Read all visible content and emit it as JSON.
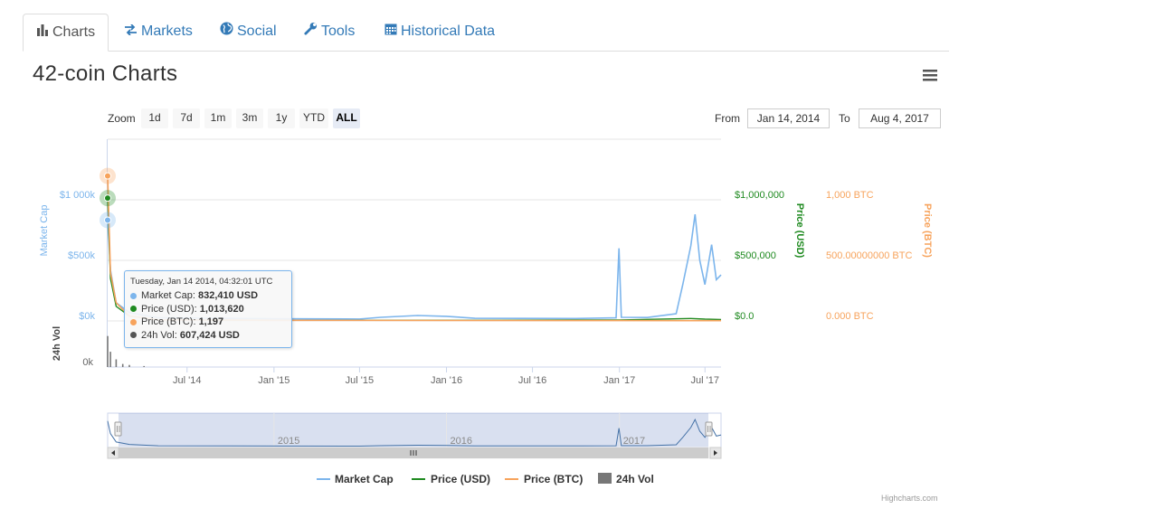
{
  "tabs": [
    {
      "label": "Charts",
      "icon": "bar-chart-icon",
      "active": true
    },
    {
      "label": "Markets",
      "icon": "exchange-arrows-icon",
      "active": false
    },
    {
      "label": "Social",
      "icon": "globe-icon",
      "active": false
    },
    {
      "label": "Tools",
      "icon": "wrench-icon",
      "active": false
    },
    {
      "label": "Historical Data",
      "icon": "calendar-icon",
      "active": false
    }
  ],
  "title": "42-coin Charts",
  "toolbar": {
    "zoom_label": "Zoom",
    "zoom_buttons": [
      "1d",
      "7d",
      "1m",
      "3m",
      "1y",
      "YTD",
      "ALL"
    ],
    "zoom_selected": "ALL",
    "from_label": "From",
    "from_value": "Jan 14, 2014",
    "to_label": "To",
    "to_value": "Aug 4, 2017"
  },
  "colors": {
    "market_cap": "#7cb5ec",
    "price_usd": "#1f8a20",
    "price_btc": "#f7a35c",
    "volume": "#777777",
    "link": "#337ab7"
  },
  "chart_data": {
    "type": "line",
    "x_ticks": [
      "Jul '14",
      "Jan '15",
      "Jul '15",
      "Jan '16",
      "Jul '16",
      "Jan '17",
      "Jul '17"
    ],
    "axes": {
      "market_cap": {
        "title": "Market Cap",
        "ticks": [
          "$1 000k",
          "$500k",
          "$0k"
        ],
        "range": [
          0,
          1000000
        ]
      },
      "volume": {
        "title": "24h Vol",
        "ticks": [
          "0k"
        ]
      },
      "price_usd": {
        "title": "Price (USD)",
        "ticks": [
          "$1,000,000",
          "$500,000",
          "$0.0"
        ],
        "range": [
          0,
          1000000
        ]
      },
      "price_btc": {
        "title": "Price (BTC)",
        "ticks": [
          "1,000 BTC",
          "500.00000000 BTC",
          "0.000 BTC"
        ],
        "range": [
          0,
          1000
        ]
      }
    },
    "series": [
      {
        "name": "Market Cap",
        "x": [
          "2014-01-14",
          "2014-01-20",
          "2014-02-01",
          "2014-03-01",
          "2014-05-01",
          "2015-01-01",
          "2015-07-01",
          "2015-08-15",
          "2015-11-01",
          "2016-01-01",
          "2016-03-01",
          "2016-10-01",
          "2016-12-25",
          "2016-12-31",
          "2017-01-05",
          "2017-03-01",
          "2017-05-01",
          "2017-05-15",
          "2017-06-01",
          "2017-06-10",
          "2017-06-20",
          "2017-07-01",
          "2017-07-15",
          "2017-07-25",
          "2017-08-04"
        ],
        "values": [
          832410,
          420000,
          150000,
          70000,
          25000,
          18000,
          16000,
          30000,
          45000,
          38000,
          22000,
          20000,
          25000,
          600000,
          30000,
          28000,
          60000,
          300000,
          620000,
          880000,
          500000,
          300000,
          630000,
          340000,
          380000
        ]
      },
      {
        "name": "Price (USD)",
        "x": [
          "2014-01-14",
          "2014-01-20",
          "2014-02-01",
          "2014-03-01",
          "2014-05-01",
          "2015-01-01",
          "2016-01-01",
          "2017-01-01",
          "2017-06-01",
          "2017-07-01",
          "2017-08-04"
        ],
        "values": [
          1013620,
          350000,
          120000,
          40000,
          10000,
          5000,
          5000,
          8000,
          20000,
          15000,
          12000
        ]
      },
      {
        "name": "Price (BTC)",
        "x": [
          "2014-01-14",
          "2014-01-20",
          "2014-02-01",
          "2014-03-01",
          "2014-05-01",
          "2015-01-01",
          "2016-01-01",
          "2017-01-01",
          "2017-08-04"
        ],
        "values": [
          1197,
          400,
          150,
          40,
          10,
          5,
          4,
          3,
          2
        ]
      },
      {
        "name": "24h Vol",
        "type": "column",
        "x": [
          "2014-01-14",
          "2014-01-20",
          "2014-02-01",
          "2014-02-15",
          "2014-03-01",
          "2014-04-01"
        ],
        "values": [
          607424,
          300000,
          150000,
          60000,
          40000,
          20000
        ]
      }
    ],
    "tooltip": {
      "header": "Tuesday, Jan 14 2014, 04:32:01 UTC",
      "rows": [
        {
          "label": "Market Cap: ",
          "value": "832,410 USD",
          "color": "#7cb5ec"
        },
        {
          "label": "Price (USD): ",
          "value": "1,013,620",
          "color": "#1f8a20"
        },
        {
          "label": "Price (BTC): ",
          "value": "1,197",
          "color": "#f7a35c"
        },
        {
          "label": "24h Vol: ",
          "value": "607,424 USD",
          "color": "#555555"
        }
      ]
    },
    "navigator": {
      "year_labels": [
        "2015",
        "2016",
        "2017"
      ]
    },
    "legend": [
      "Market Cap",
      "Price (USD)",
      "Price (BTC)",
      "24h Vol"
    ],
    "legend_position": "bottom-center"
  },
  "credit": "Highcharts.com"
}
